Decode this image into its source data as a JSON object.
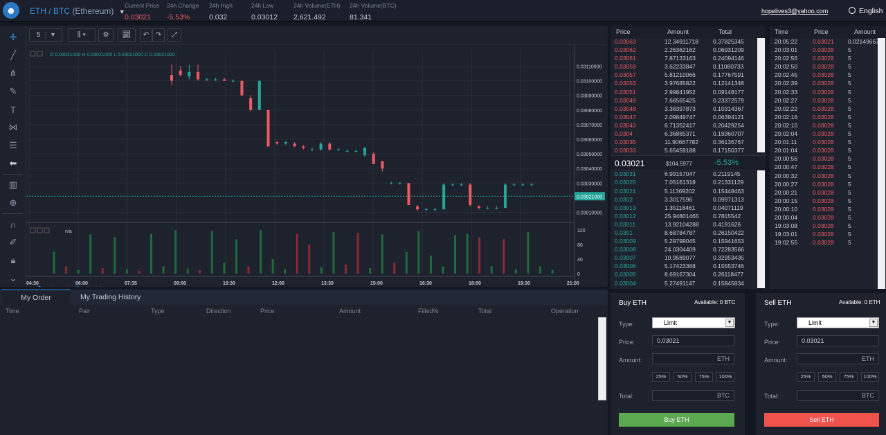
{
  "header": {
    "pair_base": "ETH",
    "pair_sep": " / ",
    "pair_quote": "BTC",
    "pair_full": "(Ethereum)",
    "stats": [
      {
        "label": "Current Price",
        "value": "0.03021",
        "red": true
      },
      {
        "label": "24h Change",
        "value": "-5.53%",
        "red": true
      },
      {
        "label": "24h High",
        "value": "0.032",
        "red": false
      },
      {
        "label": "24h Low",
        "value": "0.03012",
        "red": false
      },
      {
        "label": "24h Volume(ETH)",
        "value": "2,621.492",
        "red": false
      },
      {
        "label": "24h Volume(BTC)",
        "value": "81.341",
        "red": false
      }
    ],
    "email": "hopelives3@yahoo.com",
    "language": "English"
  },
  "toolbar": {
    "interval": "5",
    "icons": [
      "crosshair-icon",
      "trend-line-icon",
      "pitchfork-icon",
      "brush-icon",
      "text-icon",
      "pattern-icon",
      "measure-icon",
      "back-arrow-icon",
      "indicators-icon",
      "zoom-icon",
      "magnet-icon",
      "lock-drawing-icon",
      "lock-icon",
      "chevron-down-icon"
    ]
  },
  "chart": {
    "ohlc": "O 0.03021000  H 0.03021000  L 0.03021000  C 0.03021000",
    "price_ticks": [
      "0.03110000",
      "0.03100000",
      "0.03090000",
      "0.03080000",
      "0.03070000",
      "0.03060000",
      "0.03050000",
      "0.03040000",
      "0.03030000",
      "0.03010000"
    ],
    "current_price_label": "0.03021000",
    "volume_label": "n/a",
    "volume_ticks": [
      "120",
      "80",
      "40",
      "0"
    ],
    "time_ticks": [
      "04:30",
      "06:00",
      "07:35",
      "09:00",
      "10:30",
      "12:00",
      "13:30",
      "15:00",
      "16:30",
      "18:00",
      "19:30",
      "21:00"
    ],
    "watermark": "charts by TradingView",
    "colors": {
      "up": "#26a69a",
      "down": "#ef5a66"
    }
  },
  "chart_data": {
    "type": "candlestick",
    "candles": [
      {
        "o": 0.03104,
        "c": 0.031,
        "h": 0.03111,
        "l": 0.03097
      },
      {
        "o": 0.03107,
        "c": 0.03104,
        "h": 0.0311,
        "l": 0.03103
      },
      {
        "o": 0.03103,
        "c": 0.03106,
        "h": 0.03111,
        "l": 0.03101
      },
      {
        "o": 0.03106,
        "c": 0.03101,
        "h": 0.03111,
        "l": 0.031
      },
      {
        "o": 0.03101,
        "c": 0.03101,
        "h": 0.03102,
        "l": 0.031
      },
      {
        "o": 0.03101,
        "c": 0.03101,
        "h": 0.03102,
        "l": 0.031
      },
      {
        "o": 0.03101,
        "c": 0.031,
        "h": 0.03102,
        "l": 0.031
      },
      {
        "o": 0.031,
        "c": 0.031,
        "h": 0.03101,
        "l": 0.03099
      },
      {
        "o": 0.031,
        "c": 0.0309,
        "h": 0.031,
        "l": 0.0309
      },
      {
        "o": 0.03088,
        "c": 0.0308,
        "h": 0.0309,
        "l": 0.03079
      },
      {
        "o": 0.0308,
        "c": 0.031,
        "h": 0.031,
        "l": 0.0308
      },
      {
        "o": 0.0308,
        "c": 0.03055,
        "h": 0.0308,
        "l": 0.03055
      },
      {
        "o": 0.03058,
        "c": 0.03057,
        "h": 0.03059,
        "l": 0.03056
      },
      {
        "o": 0.03057,
        "c": 0.03058,
        "h": 0.03059,
        "l": 0.03056
      },
      {
        "o": 0.03057,
        "c": 0.03055,
        "h": 0.03058,
        "l": 0.03055
      },
      {
        "o": 0.03055,
        "c": 0.03054,
        "h": 0.03056,
        "l": 0.03053
      },
      {
        "o": 0.03053,
        "c": 0.03053,
        "h": 0.03054,
        "l": 0.03052
      },
      {
        "o": 0.03053,
        "c": 0.03057,
        "h": 0.03058,
        "l": 0.03052
      },
      {
        "o": 0.03057,
        "c": 0.03053,
        "h": 0.03058,
        "l": 0.03052
      },
      {
        "o": 0.03053,
        "c": 0.03053,
        "h": 0.03054,
        "l": 0.03052
      },
      {
        "o": 0.03052,
        "c": 0.03052,
        "h": 0.03053,
        "l": 0.03051
      },
      {
        "o": 0.03052,
        "c": 0.03052,
        "h": 0.03053,
        "l": 0.03051
      },
      {
        "o": 0.03049,
        "c": 0.03054,
        "h": 0.03055,
        "l": 0.03048
      },
      {
        "o": 0.0305,
        "c": 0.03043,
        "h": 0.03051,
        "l": 0.03043
      },
      {
        "o": 0.03045,
        "c": 0.0304,
        "h": 0.03045,
        "l": 0.03038
      },
      {
        "o": 0.0303,
        "c": 0.0303,
        "h": 0.03031,
        "l": 0.03029
      },
      {
        "o": 0.0303,
        "c": 0.0303,
        "h": 0.03031,
        "l": 0.03029
      },
      {
        "o": 0.0303,
        "c": 0.03015,
        "h": 0.0303,
        "l": 0.03015
      },
      {
        "o": 0.03014,
        "c": 0.03012,
        "h": 0.03015,
        "l": 0.03011
      },
      {
        "o": 0.03012,
        "c": 0.03012,
        "h": 0.03013,
        "l": 0.03011
      },
      {
        "o": 0.03012,
        "c": 0.03012,
        "h": 0.03013,
        "l": 0.03011
      },
      {
        "o": 0.03012,
        "c": 0.03029,
        "h": 0.0303,
        "l": 0.03012
      },
      {
        "o": 0.03029,
        "c": 0.03029,
        "h": 0.0303,
        "l": 0.03028
      },
      {
        "o": 0.03029,
        "c": 0.03029,
        "h": 0.0303,
        "l": 0.03028
      },
      {
        "o": 0.03029,
        "c": 0.03015,
        "h": 0.0303,
        "l": 0.03014
      },
      {
        "o": 0.03014,
        "c": 0.03013,
        "h": 0.03015,
        "l": 0.03012
      },
      {
        "o": 0.03013,
        "c": 0.03013,
        "h": 0.03014,
        "l": 0.03012
      },
      {
        "o": 0.03013,
        "c": 0.03013,
        "h": 0.03014,
        "l": 0.03012
      },
      {
        "o": 0.03013,
        "c": 0.03029,
        "h": 0.0303,
        "l": 0.03013
      },
      {
        "o": 0.03029,
        "c": 0.03029,
        "h": 0.0303,
        "l": 0.03028
      },
      {
        "o": 0.03029,
        "c": 0.03029,
        "h": 0.0303,
        "l": 0.03028
      },
      {
        "o": 0.03029,
        "c": 0.03029,
        "h": 0.0303,
        "l": 0.03028
      }
    ],
    "volumes": [
      {
        "v": 60,
        "up": true
      },
      {
        "v": 20,
        "up": false
      },
      {
        "v": 10,
        "up": true
      },
      {
        "v": 108,
        "up": true
      },
      {
        "v": 15,
        "up": false
      },
      {
        "v": 100,
        "up": true
      },
      {
        "v": 12,
        "up": true
      },
      {
        "v": 8,
        "up": false
      },
      {
        "v": 110,
        "up": true
      },
      {
        "v": 20,
        "up": true
      },
      {
        "v": 120,
        "up": true
      },
      {
        "v": 14,
        "up": true
      },
      {
        "v": 10,
        "up": false
      },
      {
        "v": 118,
        "up": true
      },
      {
        "v": 30,
        "up": true
      },
      {
        "v": 95,
        "up": true
      },
      {
        "v": 20,
        "up": false
      },
      {
        "v": 120,
        "up": true
      },
      {
        "v": 40,
        "up": true
      },
      {
        "v": 12,
        "up": true
      },
      {
        "v": 110,
        "up": false
      },
      {
        "v": 80,
        "up": false
      },
      {
        "v": 18,
        "up": true
      },
      {
        "v": 115,
        "up": true
      },
      {
        "v": 25,
        "up": false
      },
      {
        "v": 112,
        "up": false
      },
      {
        "v": 15,
        "up": true
      },
      {
        "v": 108,
        "up": true
      },
      {
        "v": 30,
        "up": false
      },
      {
        "v": 60,
        "up": true
      },
      {
        "v": 118,
        "up": true
      },
      {
        "v": 50,
        "up": true
      },
      {
        "v": 20,
        "up": true
      },
      {
        "v": 106,
        "up": true
      },
      {
        "v": 110,
        "up": true
      },
      {
        "v": 100,
        "up": false
      },
      {
        "v": 20,
        "up": true
      },
      {
        "v": 95,
        "up": false
      },
      {
        "v": 12,
        "up": true
      },
      {
        "v": 115,
        "up": true
      },
      {
        "v": 20,
        "up": true
      },
      {
        "v": 10,
        "up": true
      }
    ],
    "ylim": [
      0.03005,
      0.03115
    ],
    "vol_ylim": [
      0,
      130
    ]
  },
  "orders_panel": {
    "tabs": [
      "My Order",
      "My Trading History"
    ],
    "columns": [
      "Time",
      "Pair",
      "Type",
      "Direction",
      "Price",
      "Amount",
      "Filled%",
      "Total",
      "Operation"
    ]
  },
  "orderbook": {
    "headers": [
      "Price",
      "Amount",
      "Total"
    ],
    "asks": [
      [
        "0.03063",
        "12.34911718",
        "0.37825345"
      ],
      [
        "0.03062",
        "2.26362162",
        "0.06931209"
      ],
      [
        "0.03061",
        "7.87133163",
        "0.24094146"
      ],
      [
        "0.03059",
        "3.62233847",
        "0.11080733"
      ],
      [
        "0.03057",
        "5.81210066",
        "0.17767591"
      ],
      [
        "0.03053",
        "3.97685822",
        "0.12141348"
      ],
      [
        "0.03051",
        "2.99841952",
        "0.09148177"
      ],
      [
        "0.03049",
        "7.66565425",
        "0.23372579"
      ],
      [
        "0.03048",
        "3.38397873",
        "0.10314367"
      ],
      [
        "0.03047",
        "2.09849747",
        "0.06394121"
      ],
      [
        "0.03043",
        "6.71352417",
        "0.20429254"
      ],
      [
        "0.0304",
        "6.36865371",
        "0.19360707"
      ],
      [
        "0.03035",
        "11.90667782",
        "0.36136767"
      ],
      [
        "0.03033",
        "5.65459188",
        "0.17150377"
      ]
    ],
    "mid_price": "0.03021",
    "mid_usd": "$104.5977",
    "mid_change": "-5.53%",
    "bids": [
      [
        "0.03031",
        "6.99157047",
        "0.2119145"
      ],
      [
        "0.03025",
        "7.05161318",
        "0.21331129"
      ],
      [
        "0.03021",
        "5.11369202",
        "0.15448463"
      ],
      [
        "0.0302",
        "3.3017596",
        "0.09971313"
      ],
      [
        "0.03013",
        "1.35118461",
        "0.04071119"
      ],
      [
        "0.03012",
        "25.94801465",
        "0.7815542"
      ],
      [
        "0.03011",
        "13.92104288",
        "0.4191626"
      ],
      [
        "0.0301",
        "8.68784787",
        "0.26150422"
      ],
      [
        "0.03009",
        "5.29799045",
        "0.15941653"
      ],
      [
        "0.03008",
        "24.0304409",
        "0.72283566"
      ],
      [
        "0.03007",
        "10.9589077",
        "0.32953435"
      ],
      [
        "0.03006",
        "5.17423368",
        "0.15553746"
      ],
      [
        "0.03005",
        "8.69167304",
        "0.26118477"
      ],
      [
        "0.03004",
        "5.27491147",
        "0.15845834"
      ]
    ]
  },
  "trades": {
    "headers": [
      "Time",
      "Price",
      "Amount"
    ],
    "rows": [
      [
        "20:05:22",
        "0.03021",
        "0.02149667"
      ],
      [
        "20:03:01",
        "0.03028",
        "5"
      ],
      [
        "20:02:56",
        "0.03028",
        "5"
      ],
      [
        "20:02:50",
        "0.03028",
        "5"
      ],
      [
        "20:02:45",
        "0.03028",
        "5"
      ],
      [
        "20:02:39",
        "0.03028",
        "5"
      ],
      [
        "20:02:33",
        "0.03028",
        "5"
      ],
      [
        "20:02:27",
        "0.03028",
        "5"
      ],
      [
        "20:02:22",
        "0.03028",
        "5"
      ],
      [
        "20:02:16",
        "0.03028",
        "5"
      ],
      [
        "20:02:10",
        "0.03028",
        "5"
      ],
      [
        "20:02:04",
        "0.03028",
        "5"
      ],
      [
        "20:01:11",
        "0.03028",
        "5"
      ],
      [
        "20:01:04",
        "0.03028",
        "5"
      ],
      [
        "20:00:56",
        "0.03028",
        "5"
      ],
      [
        "20:00:47",
        "0.03028",
        "5"
      ],
      [
        "20:00:32",
        "0.03028",
        "5"
      ],
      [
        "20:00:27",
        "0.03028",
        "5"
      ],
      [
        "20:00:21",
        "0.03028",
        "5"
      ],
      [
        "20:00:15",
        "0.03028",
        "5"
      ],
      [
        "20:00:10",
        "0.03028",
        "5"
      ],
      [
        "20:00:04",
        "0.03028",
        "5"
      ],
      [
        "19:03:08",
        "0.03028",
        "5"
      ],
      [
        "19:03:01",
        "0.03028",
        "5"
      ],
      [
        "19:02:55",
        "0.03028",
        "5"
      ]
    ]
  },
  "buy": {
    "title": "Buy ETH",
    "available": "Available: 0 BTC",
    "type_label": "Type:",
    "type_value": "Limit",
    "price_label": "Price:",
    "price_value": "0.03021",
    "amount_label": "Amount:",
    "amount_unit": "ETH",
    "pcts": [
      "25%",
      "50%",
      "75%",
      "100%"
    ],
    "total_label": "Total:",
    "total_unit": "BTC",
    "button": "Buy ETH",
    "color": "#5ca850"
  },
  "sell": {
    "title": "Sell ETH",
    "available": "Available: 0 ETH",
    "type_label": "Type:",
    "type_value": "Limit",
    "price_label": "Price:",
    "price_value": "0.03021",
    "amount_label": "Amount:",
    "amount_unit": "ETH",
    "pcts": [
      "25%",
      "50%",
      "75%",
      "100%"
    ],
    "total_label": "Total:",
    "total_unit": "BTC",
    "button": "Sell ETH",
    "color": "#f0524c"
  }
}
